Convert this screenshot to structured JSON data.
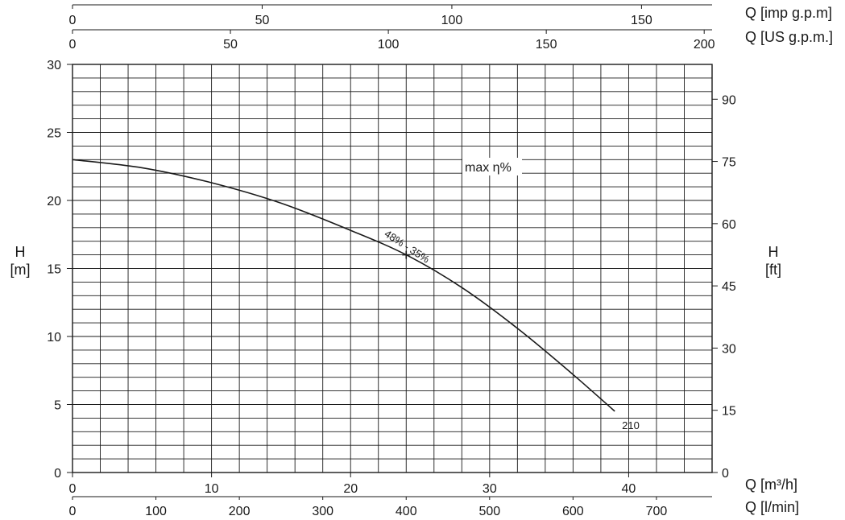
{
  "chart_data": {
    "type": "line",
    "title": "",
    "x_axes": {
      "m3h": {
        "label": "Q [m³/h]",
        "ticks": [
          0,
          10,
          20,
          30,
          40
        ],
        "range": [
          0,
          46
        ]
      },
      "lmin": {
        "label": "Q [l/min]",
        "ticks": [
          0,
          100,
          200,
          300,
          400,
          500,
          600,
          700
        ],
        "range": [
          0,
          766.7
        ]
      },
      "usgpm": {
        "label": "Q [US g.p.m.]",
        "ticks": [
          0,
          50,
          100,
          150,
          200
        ],
        "range": [
          0,
          202.5
        ]
      },
      "impgpm": {
        "label": "Q [imp g.p.m]",
        "ticks": [
          0,
          50,
          100,
          150
        ],
        "range": [
          0,
          168.6
        ]
      }
    },
    "y_axes": {
      "m": {
        "label_line1": "H",
        "label_line2": "[m]",
        "ticks": [
          0,
          5,
          10,
          15,
          20,
          25,
          30
        ],
        "range": [
          0,
          30
        ]
      },
      "ft": {
        "label_line1": "H",
        "label_line2": "[ft]",
        "ticks": [
          0,
          15,
          30,
          45,
          60,
          75,
          90
        ],
        "range": [
          0,
          98.4
        ]
      }
    },
    "grid": true,
    "series": [
      {
        "name": "210",
        "unit_x": "m3/h",
        "unit_y": "m",
        "x": [
          0,
          5,
          10,
          15,
          20,
          24,
          28,
          32,
          36,
          39
        ],
        "y": [
          23.0,
          22.4,
          21.3,
          19.8,
          17.8,
          16.0,
          13.6,
          10.6,
          7.2,
          4.5
        ]
      }
    ],
    "annotations": {
      "max_eta_label": "max η%",
      "point_label": "48% - 35%",
      "point": {
        "x": 24,
        "y": 16.0
      },
      "curve_label": "210"
    }
  }
}
